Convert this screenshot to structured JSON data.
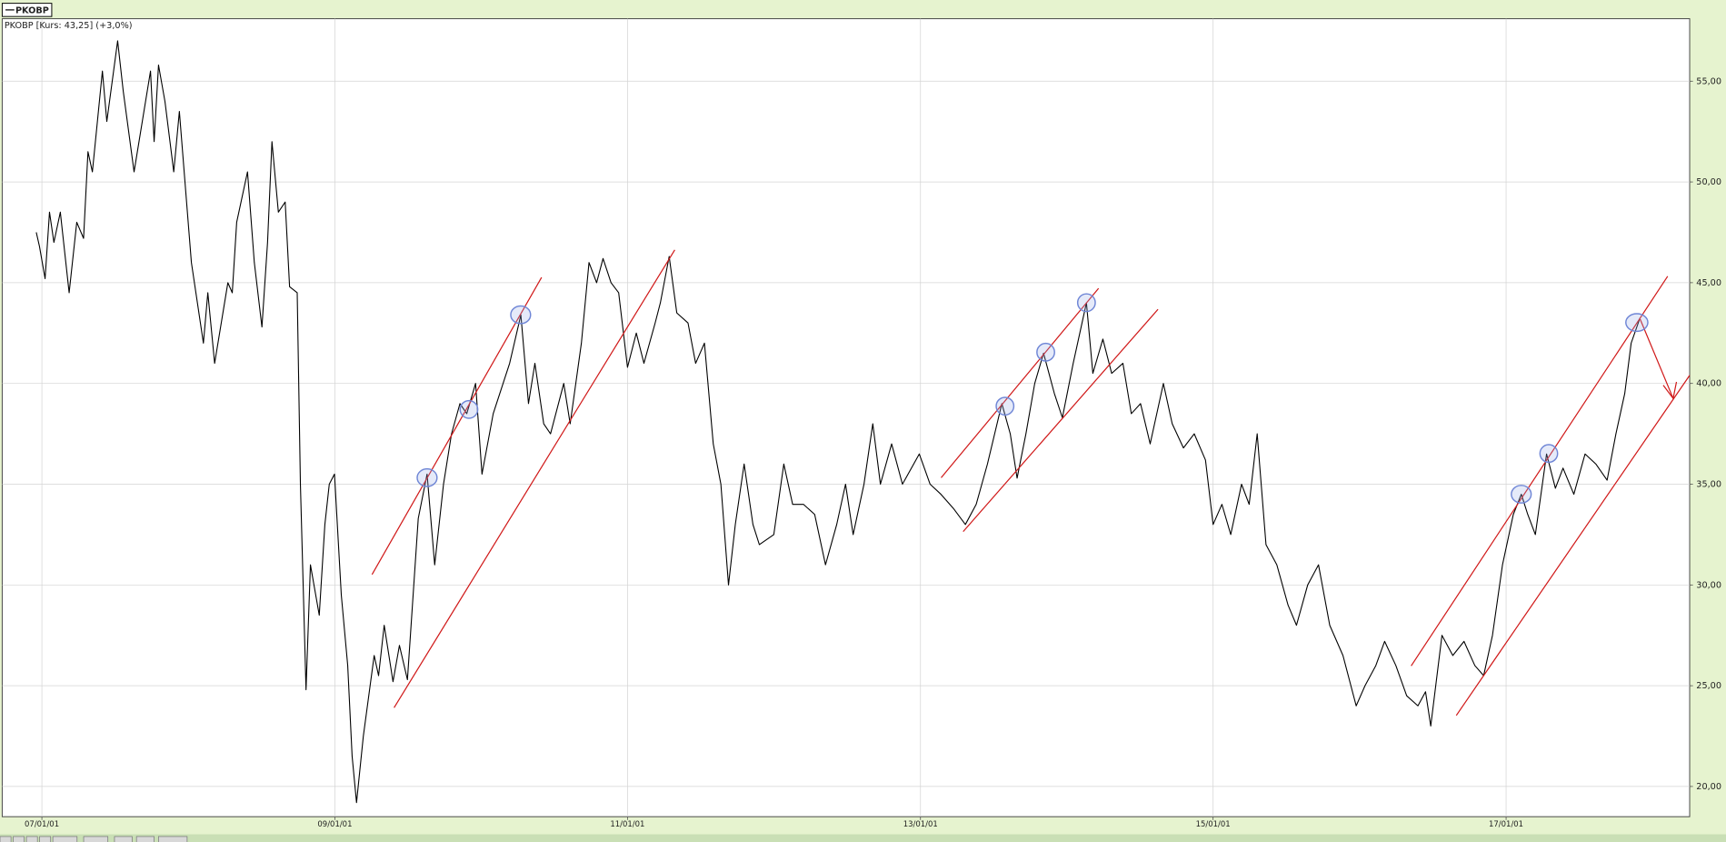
{
  "chart_data": {
    "type": "line",
    "title": "PKOBP [Kurs: 43,25] (+3,0%)",
    "xlim": [
      "2006-09-24",
      "2018-04-04"
    ],
    "ylim": [
      18.5,
      58.1
    ],
    "xticks": [
      {
        "value": "2007-01-01",
        "label": "07/01/01"
      },
      {
        "value": "2009-01-01",
        "label": "09/01/01"
      },
      {
        "value": "2011-01-01",
        "label": "11/01/01"
      },
      {
        "value": "2013-01-01",
        "label": "13/01/01"
      },
      {
        "value": "2015-01-01",
        "label": "15/01/01"
      },
      {
        "value": "2017-01-01",
        "label": "17/01/01"
      }
    ],
    "yticks": [
      {
        "value": 20,
        "label": "20,00"
      },
      {
        "value": 25,
        "label": "25,00"
      },
      {
        "value": 30,
        "label": "30,00"
      },
      {
        "value": 35,
        "label": "35,00"
      },
      {
        "value": 40,
        "label": "40,00"
      },
      {
        "value": 45,
        "label": "45,00"
      },
      {
        "value": 50,
        "label": "50,00"
      },
      {
        "value": 55,
        "label": "55,00"
      }
    ],
    "grid": true,
    "legend": "top-left",
    "x": [
      "2006-12-18",
      "2006-12-26",
      "2007-01-09",
      "2007-01-20",
      "2007-01-31",
      "2007-02-16",
      "2007-03-10",
      "2007-03-29",
      "2007-04-15",
      "2007-04-26",
      "2007-05-07",
      "2007-06-01",
      "2007-06-12",
      "2007-07-09",
      "2007-07-23",
      "2007-08-19",
      "2007-09-29",
      "2007-10-08",
      "2007-10-19",
      "2007-11-04",
      "2007-11-26",
      "2007-12-10",
      "2008-01-09",
      "2008-02-08",
      "2008-02-19",
      "2008-03-07",
      "2008-04-09",
      "2008-04-20",
      "2008-05-01",
      "2008-05-28",
      "2008-06-14",
      "2008-07-03",
      "2008-07-17",
      "2008-07-28",
      "2008-08-13",
      "2008-08-30",
      "2008-09-10",
      "2008-09-29",
      "2008-10-07",
      "2008-10-21",
      "2008-11-01",
      "2008-11-23",
      "2008-12-07",
      "2008-12-18",
      "2008-12-31",
      "2009-01-17",
      "2009-02-02",
      "2009-02-13",
      "2009-02-24",
      "2009-03-13",
      "2009-04-09",
      "2009-04-20",
      "2009-05-04",
      "2009-05-26",
      "2009-06-11",
      "2009-07-01",
      "2009-07-28",
      "2009-08-19",
      "2009-09-07",
      "2009-09-29",
      "2009-10-19",
      "2009-11-09",
      "2009-11-26",
      "2009-12-18",
      "2010-01-03",
      "2010-01-31",
      "2010-03-13",
      "2010-04-10",
      "2010-04-29",
      "2010-05-15",
      "2010-06-06",
      "2010-06-23",
      "2010-07-26",
      "2010-08-11",
      "2010-09-08",
      "2010-09-27",
      "2010-10-16",
      "2010-11-01",
      "2010-11-21",
      "2010-12-10",
      "2011-01-01",
      "2011-01-23",
      "2011-02-11",
      "2011-03-11",
      "2011-03-24",
      "2011-04-15",
      "2011-05-04",
      "2011-06-01",
      "2011-06-20",
      "2011-07-12",
      "2011-08-03",
      "2011-08-22",
      "2011-09-10",
      "2011-09-27",
      "2011-10-19",
      "2011-11-10",
      "2011-11-26",
      "2012-01-01",
      "2012-01-26",
      "2012-02-17",
      "2012-03-15",
      "2012-04-12",
      "2012-05-09",
      "2012-06-06",
      "2012-06-28",
      "2012-07-17",
      "2012-08-13",
      "2012-09-04",
      "2012-09-23",
      "2012-10-21",
      "2012-11-17",
      "2012-12-29",
      "2013-01-25",
      "2013-02-21",
      "2013-03-24",
      "2013-04-23",
      "2013-05-20",
      "2013-06-17",
      "2013-07-23",
      "2013-08-13",
      "2013-08-30",
      "2013-09-21",
      "2013-10-13",
      "2013-11-04",
      "2013-12-01",
      "2013-12-21",
      "2014-01-17",
      "2014-02-19",
      "2014-03-07",
      "2014-04-01",
      "2014-04-23",
      "2014-05-21",
      "2014-06-11",
      "2014-07-04",
      "2014-07-28",
      "2014-08-30",
      "2014-09-21",
      "2014-10-19",
      "2014-11-15",
      "2014-12-13",
      "2015-01-01",
      "2015-01-23",
      "2015-02-14",
      "2015-03-13",
      "2015-04-01",
      "2015-04-21",
      "2015-05-13",
      "2015-06-09",
      "2015-07-07",
      "2015-07-28",
      "2015-08-25",
      "2015-09-21",
      "2015-10-19",
      "2015-11-21",
      "2015-12-24",
      "2016-01-15",
      "2016-02-11",
      "2016-03-04",
      "2016-04-01",
      "2016-04-28",
      "2016-05-26",
      "2016-06-14",
      "2016-06-27",
      "2016-07-25",
      "2016-08-21",
      "2016-09-18",
      "2016-10-15",
      "2016-11-06",
      "2016-11-28",
      "2016-12-23",
      "2017-01-19",
      "2017-02-08",
      "2017-02-24",
      "2017-03-15",
      "2017-04-12",
      "2017-05-04",
      "2017-05-23",
      "2017-06-19",
      "2017-07-17",
      "2017-08-13",
      "2017-09-10",
      "2017-10-02",
      "2017-10-24",
      "2017-11-09",
      "2017-12-01"
    ],
    "series": [
      {
        "name": "PKOBP",
        "color": "#000000",
        "values": [
          47.5,
          46.8,
          45.2,
          48.5,
          47,
          48.5,
          44.5,
          48,
          47.2,
          51.5,
          50.5,
          55.5,
          53,
          57,
          54.5,
          50.5,
          55.5,
          52,
          55.8,
          54,
          50.5,
          53.5,
          46,
          42,
          44.5,
          41,
          45,
          44.5,
          48,
          50.5,
          46,
          42.8,
          47,
          52,
          48.5,
          49,
          44.8,
          44.5,
          35,
          24.8,
          31,
          28.5,
          33,
          35,
          35.5,
          29.5,
          26,
          21.5,
          19.2,
          22.5,
          26.5,
          25.5,
          28,
          25.2,
          27,
          25.3,
          33.3,
          35.5,
          31,
          35,
          37.5,
          39,
          38.5,
          40,
          35.5,
          38.5,
          41,
          43.4,
          39,
          41,
          38,
          37.5,
          40,
          38,
          42,
          46,
          45,
          46.2,
          45,
          44.5,
          40.8,
          42.5,
          41,
          43,
          44,
          46.3,
          43.5,
          43,
          41,
          42,
          37,
          35,
          30,
          33,
          36,
          33,
          32,
          32.5,
          36,
          34,
          34,
          33.5,
          31,
          33,
          35,
          32.5,
          35,
          38,
          35,
          37,
          35,
          36.5,
          35,
          34.5,
          33.8,
          33,
          34,
          36,
          39,
          37.5,
          35.3,
          37.5,
          40,
          41.5,
          39.5,
          38.3,
          41,
          44,
          40.5,
          42.2,
          40.5,
          41,
          38.5,
          39,
          37,
          40,
          38,
          36.8,
          37.5,
          36.2,
          33,
          34,
          32.5,
          35,
          34,
          37.5,
          32,
          31,
          29,
          28,
          30,
          31,
          28,
          26.5,
          24,
          25,
          26,
          27.2,
          26,
          24.5,
          24,
          24.7,
          23,
          27.5,
          26.5,
          27.2,
          26,
          25.5,
          27.5,
          31,
          33.5,
          34.5,
          33.5,
          32.5,
          36.5,
          34.8,
          35.8,
          34.5,
          36.5,
          36,
          35.2,
          37.5,
          39.5,
          42,
          43.25
        ]
      }
    ]
  }
}
